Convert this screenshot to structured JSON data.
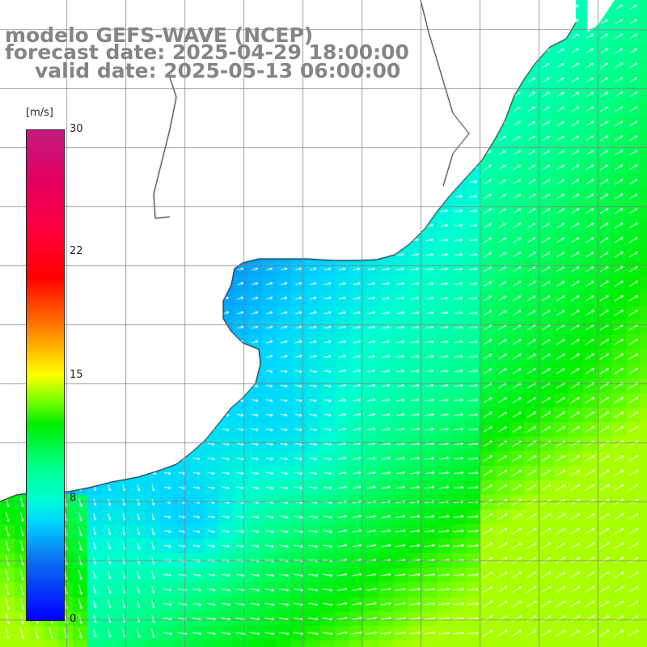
{
  "header": {
    "line1": "modelo GEFS-WAVE (NCEP)",
    "line2": "forecast date: 2025-04-29 18:00:00",
    "line3": "valid date: 2025-05-13 06:00:00"
  },
  "legend": {
    "unit": "[m/s]",
    "ticks": [
      "30",
      "22",
      "15",
      "8",
      "0"
    ],
    "range": [
      0,
      30
    ]
  },
  "map": {
    "field": "wind speed",
    "land_color": "#ffffff",
    "gridline_color": "#808080",
    "coastline_color": "#000000",
    "vector_color": "#ffffff"
  }
}
